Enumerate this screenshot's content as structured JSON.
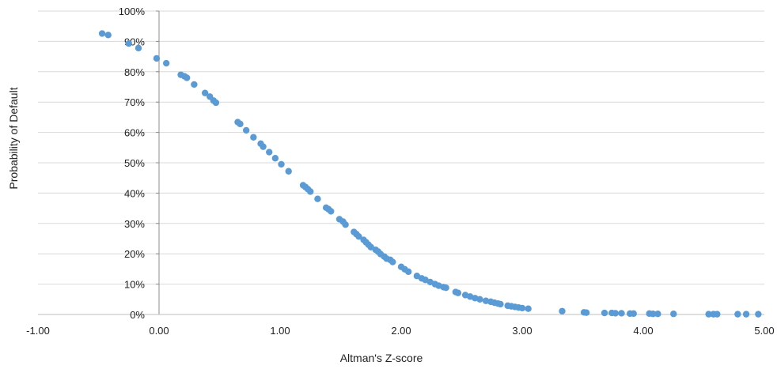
{
  "chart_data": {
    "type": "scatter",
    "title": "",
    "xlabel": "Altman's Z-score",
    "ylabel": "Probability of Default",
    "xlim": [
      -1.0,
      5.0
    ],
    "ylim": [
      0,
      1.0
    ],
    "x_ticks": [
      -1.0,
      0.0,
      1.0,
      2.0,
      3.0,
      4.0,
      5.0
    ],
    "x_tick_labels": [
      "-1.00",
      "0.00",
      "1.00",
      "2.00",
      "3.00",
      "4.00",
      "5.00"
    ],
    "y_ticks": [
      0,
      0.1,
      0.2,
      0.3,
      0.4,
      0.5,
      0.6,
      0.7,
      0.8,
      0.9,
      1.0
    ],
    "y_tick_labels": [
      "0%",
      "10%",
      "20%",
      "30%",
      "40%",
      "50%",
      "60%",
      "70%",
      "80%",
      "90%",
      "100%"
    ],
    "grid": "horizontal",
    "legend": "none",
    "marker_color": "#5b9bd5",
    "gridline_color": "#d9d9d9",
    "series": [
      {
        "x": [
          -0.47,
          -0.42,
          -0.25,
          -0.17,
          -0.02,
          0.06,
          0.18,
          0.21,
          0.23,
          0.29,
          0.38,
          0.42,
          0.45,
          0.47,
          0.65,
          0.67,
          0.72,
          0.78,
          0.84,
          0.86,
          0.91,
          0.96,
          1.01,
          1.07,
          1.19,
          1.21,
          1.23,
          1.25,
          1.31,
          1.38,
          1.4,
          1.42,
          1.49,
          1.52,
          1.54,
          1.61,
          1.63,
          1.65,
          1.69,
          1.71,
          1.73,
          1.75,
          1.79,
          1.81,
          1.83,
          1.86,
          1.88,
          1.91,
          1.93,
          2.0,
          2.03,
          2.06,
          2.13,
          2.17,
          2.2,
          2.24,
          2.28,
          2.31,
          2.35,
          2.37,
          2.45,
          2.47,
          2.53,
          2.57,
          2.61,
          2.65,
          2.7,
          2.74,
          2.77,
          2.8,
          2.82,
          2.88,
          2.91,
          2.94,
          2.97,
          3.0,
          3.05,
          3.33,
          3.51,
          3.53,
          3.68,
          3.74,
          3.77,
          3.82,
          3.89,
          3.92,
          4.05,
          4.08,
          4.12,
          4.25,
          4.54,
          4.58,
          4.61,
          4.78,
          4.85,
          4.95
        ],
        "y": [
          0.926,
          0.921,
          0.893,
          0.878,
          0.844,
          0.828,
          0.79,
          0.785,
          0.78,
          0.758,
          0.73,
          0.718,
          0.705,
          0.698,
          0.634,
          0.628,
          0.607,
          0.584,
          0.563,
          0.553,
          0.535,
          0.515,
          0.495,
          0.472,
          0.426,
          0.42,
          0.413,
          0.405,
          0.381,
          0.352,
          0.347,
          0.34,
          0.314,
          0.306,
          0.296,
          0.272,
          0.265,
          0.257,
          0.246,
          0.238,
          0.23,
          0.222,
          0.213,
          0.207,
          0.199,
          0.191,
          0.184,
          0.18,
          0.173,
          0.157,
          0.149,
          0.141,
          0.127,
          0.119,
          0.114,
          0.107,
          0.1,
          0.095,
          0.09,
          0.088,
          0.074,
          0.071,
          0.064,
          0.059,
          0.054,
          0.05,
          0.045,
          0.042,
          0.039,
          0.036,
          0.034,
          0.029,
          0.027,
          0.025,
          0.023,
          0.021,
          0.019,
          0.011,
          0.007,
          0.006,
          0.005,
          0.005,
          0.004,
          0.004,
          0.003,
          0.003,
          0.003,
          0.002,
          0.002,
          0.002,
          0.001,
          0.001,
          0.001,
          0.001,
          0.001,
          0.001
        ]
      }
    ]
  }
}
